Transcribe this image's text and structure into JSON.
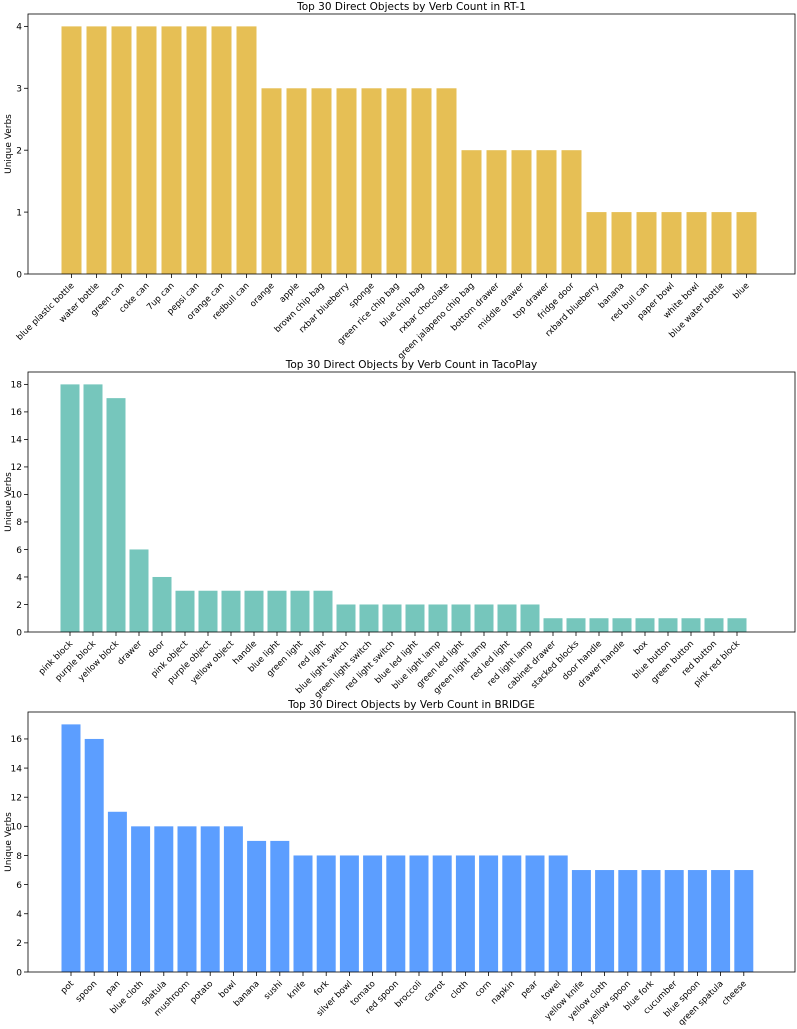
{
  "chart_data": [
    {
      "type": "bar",
      "title": "Top 30 Direct Objects by Verb Count in RT-1",
      "xlabel": "",
      "ylabel": "Unique Verbs",
      "ylim": [
        0,
        4.2
      ],
      "yticks": [
        0,
        1,
        2,
        3,
        4
      ],
      "color": "#E6BF55",
      "categories": [
        "blue plastic bottle",
        "water bottle",
        "green can",
        "coke can",
        "7up can",
        "pepsi can",
        "orange can",
        "redbull can",
        "orange",
        "apple",
        "brown chip bag",
        "rxbar blueberry",
        "sponge",
        "green rice chip bag",
        "blue chip bag",
        "rxbar chocolate",
        "green jalapeno chip bag",
        "bottom drawer",
        "middle drawer",
        "top drawer",
        "fridge door",
        "rxbard blueberry",
        "banana",
        "red bull can",
        "paper bowl",
        "white bowl",
        "blue water bottle",
        "blue"
      ],
      "values": [
        4,
        4,
        4,
        4,
        4,
        4,
        4,
        4,
        3,
        3,
        3,
        3,
        3,
        3,
        3,
        3,
        2,
        2,
        2,
        2,
        2,
        1,
        1,
        1,
        1,
        1,
        1,
        1
      ]
    },
    {
      "type": "bar",
      "title": "Top 30 Direct Objects by Verb Count in TacoPlay",
      "xlabel": "",
      "ylabel": "Unique Verbs",
      "ylim": [
        0,
        18.9
      ],
      "yticks": [
        0,
        2,
        4,
        6,
        8,
        10,
        12,
        14,
        16,
        18
      ],
      "color": "#76C6BC",
      "categories": [
        "pink block",
        "purple block",
        "yellow block",
        "drawer",
        "door",
        "pink object",
        "purple object",
        "yellow object",
        "handle",
        "blue light",
        "green light",
        "red light",
        "blue light switch",
        "green light switch",
        "red light switch",
        "blue led light",
        "blue light lamp",
        "green led light",
        "green light lamp",
        "red led light",
        "red light lamp",
        "cabinet drawer",
        "stacked blocks",
        "door handle",
        "drawer handle",
        "box",
        "blue button",
        "green button",
        "red button",
        "pink red block"
      ],
      "values": [
        18,
        18,
        17,
        6,
        4,
        3,
        3,
        3,
        3,
        3,
        3,
        3,
        2,
        2,
        2,
        2,
        2,
        2,
        2,
        2,
        2,
        1,
        1,
        1,
        1,
        1,
        1,
        1,
        1,
        1
      ]
    },
    {
      "type": "bar",
      "title": "Top 30 Direct Objects by Verb Count in BRIDGE",
      "xlabel": "",
      "ylabel": "Unique Verbs",
      "ylim": [
        0,
        17.85
      ],
      "yticks": [
        0,
        2,
        4,
        6,
        8,
        10,
        12,
        14,
        16
      ],
      "color": "#5C9EFF",
      "categories": [
        "pot",
        "spoon",
        "pan",
        "blue cloth",
        "spatula",
        "mushroom",
        "potato",
        "bowl",
        "banana",
        "sushi",
        "knife",
        "fork",
        "silver bowl",
        "tomato",
        "red spoon",
        "broccoli",
        "carrot",
        "cloth",
        "corn",
        "napkin",
        "pear",
        "towel",
        "yellow knife",
        "yellow cloth",
        "yellow spoon",
        "blue fork",
        "cucumber",
        "blue spoon",
        "green spatula",
        "cheese"
      ],
      "values": [
        17,
        16,
        11,
        10,
        10,
        10,
        10,
        10,
        9,
        9,
        8,
        8,
        8,
        8,
        8,
        8,
        8,
        8,
        8,
        8,
        8,
        8,
        7,
        7,
        7,
        7,
        7,
        7,
        7,
        7
      ]
    }
  ]
}
